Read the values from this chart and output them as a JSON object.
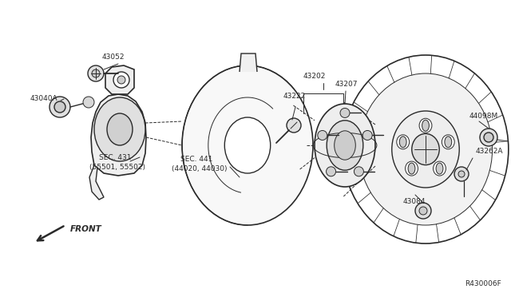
{
  "bg_color": "#ffffff",
  "line_color": "#2a2a2a",
  "fig_width": 6.4,
  "fig_height": 3.72,
  "dpi": 100,
  "diagram_ref": "R430006F",
  "label_texts": {
    "43052": "43052",
    "43040A": "43040A",
    "SEC431": "SEC. 431",
    "SEC431b": "(55501, 55502)",
    "43202": "43202",
    "43222": "43222",
    "43207": "43207",
    "44098M": "44098M",
    "43262A": "43262A",
    "43084": "43084",
    "SEC441": "SEC. 441",
    "SEC441b": "(44020, 44030)",
    "FRONT": "FRONT"
  }
}
